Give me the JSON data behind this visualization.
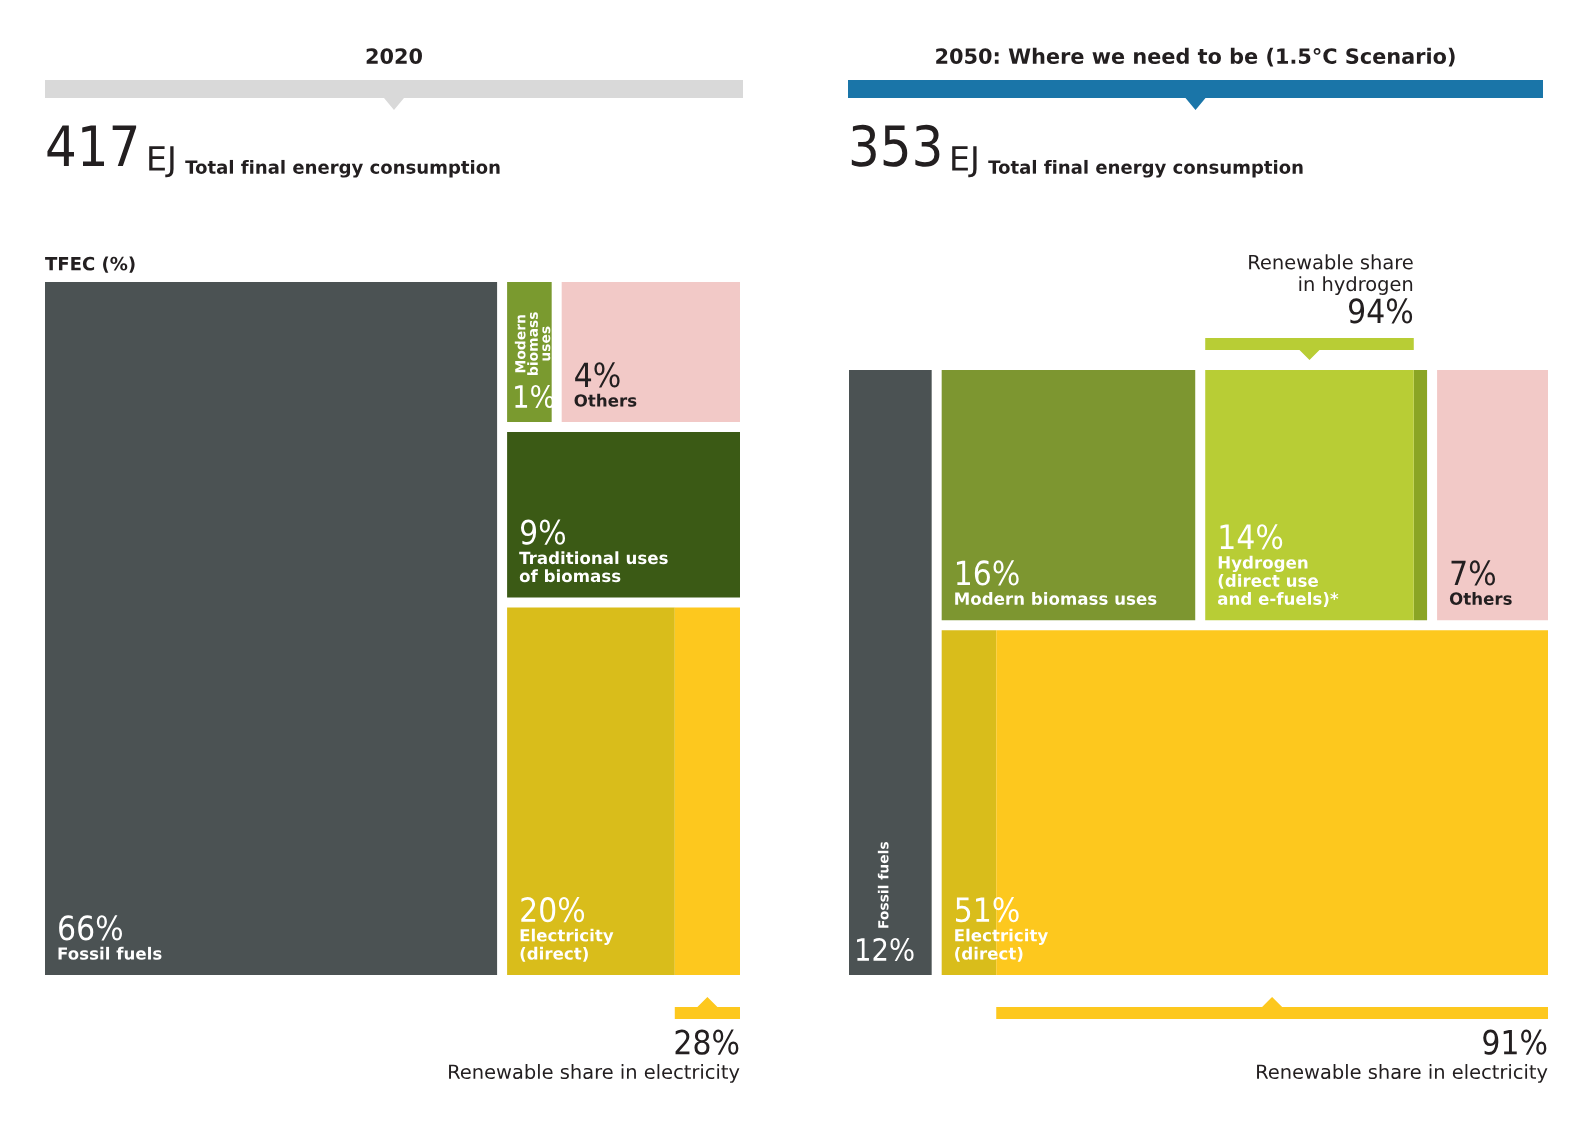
{
  "chart_data": [
    {
      "type": "other",
      "title": "2020",
      "subtitle": "417 EJ Total final energy consumption",
      "ylabel": "TFEC (%)",
      "categories": [
        "Fossil fuels",
        "Modern\nbiomass\nuses",
        "Others",
        "Traditional uses\nof biomass",
        "Electricity\n(direct)"
      ],
      "series": [
        {
          "values": [
            66,
            1,
            4,
            9,
            20
          ],
          "value_labels": [
            "66%",
            "1%",
            "4%",
            "9%",
            "20%"
          ],
          "colors": [
            "#4b5253",
            "#7a9a2f",
            "#f2c9c7",
            "#3b5a15",
            "#d9bd1b"
          ]
        },
        {
          "values": [
            null,
            null,
            null,
            null,
            28
          ],
          "value_labels": [
            null,
            null,
            null,
            null,
            "28%"
          ],
          "colors": [
            null,
            null,
            null,
            null,
            "#fdc81e"
          ]
        }
      ],
      "annotations": [
        "Renewable share in electricity"
      ]
    },
    {
      "type": "other",
      "title": "2050: Where we need to be (1.5°C Scenario)",
      "subtitle": "353 EJ Total final energy consumption",
      "categories": [
        "Fossil fuels",
        "Modern biomass uses",
        "Hydrogen\n(direct use\nand e-fuels)*",
        "Others",
        "Electricity\n(direct)"
      ],
      "series": [
        {
          "values": [
            12,
            16,
            14,
            7,
            51
          ],
          "value_labels": [
            "12%",
            "16%",
            "14%",
            "7%",
            "51%"
          ],
          "colors": [
            "#4b5253",
            "#7d9630",
            "#b8cd35",
            "#f2c9c7",
            "#d9bd1b"
          ]
        },
        {
          "values": [
            null,
            null,
            94,
            null,
            91
          ],
          "value_labels": [
            null,
            null,
            "94%",
            null,
            "91%"
          ],
          "colors": [
            null,
            null,
            "#8ba524",
            null,
            "#fdc81e"
          ]
        }
      ],
      "annotations": [
        "Renewable share\nin hydrogen",
        "Renewable share in electricity"
      ]
    }
  ]
}
